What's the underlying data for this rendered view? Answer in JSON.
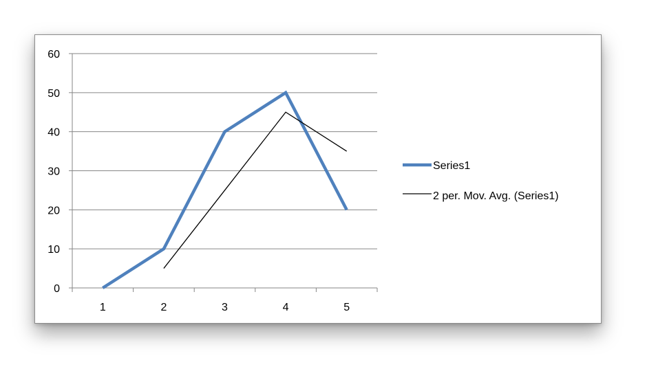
{
  "chart_data": {
    "type": "line",
    "x": [
      1,
      2,
      3,
      4,
      5
    ],
    "categories": [
      "1",
      "2",
      "3",
      "4",
      "5"
    ],
    "series": [
      {
        "name": "Series1",
        "values": [
          0,
          10,
          40,
          50,
          20
        ],
        "color": "#4f81bd"
      }
    ],
    "trendlines": [
      {
        "name": "2 per. Mov. Avg. (Series1)",
        "x": [
          2,
          3,
          4,
          5
        ],
        "values": [
          5,
          25,
          45,
          35
        ],
        "color": "#000000"
      }
    ],
    "yticks": [
      "0",
      "10",
      "20",
      "30",
      "40",
      "50",
      "60"
    ],
    "ylim": [
      0,
      60
    ],
    "grid": true,
    "legend_position": "right"
  }
}
